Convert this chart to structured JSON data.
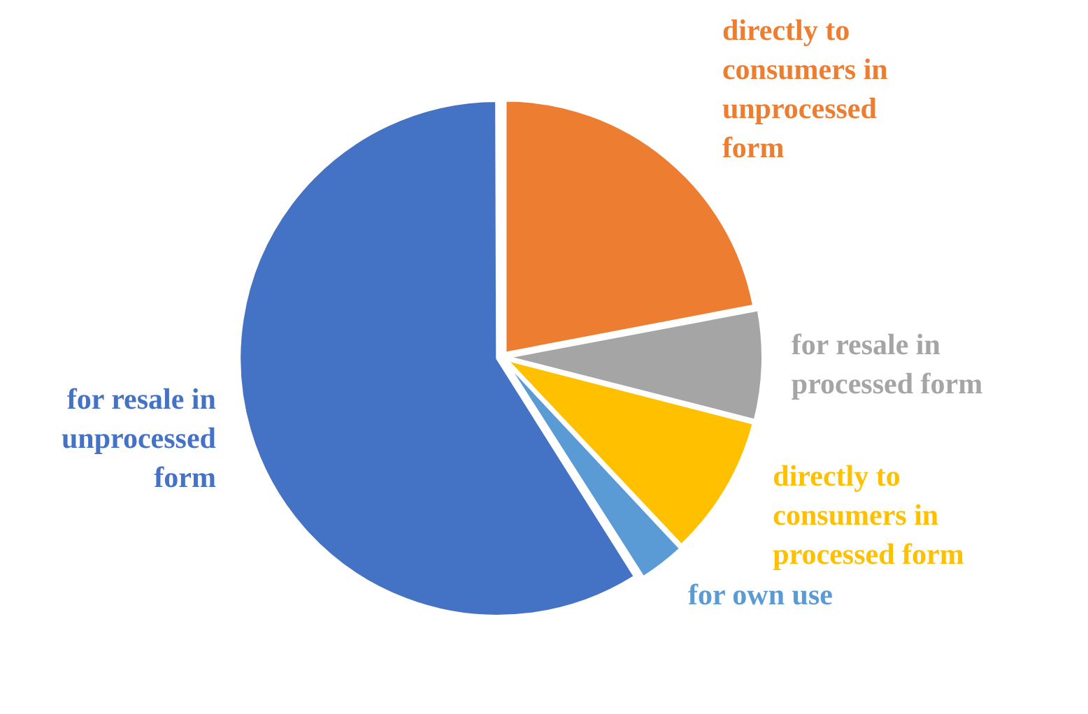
{
  "chart_data": {
    "type": "pie",
    "categories": [
      "directly to consumers in unprocessed form",
      "for resale in processed form",
      "directly to consumers in processed form",
      "for own use",
      "for resale in unprocessed form"
    ],
    "values": [
      22,
      7,
      9,
      3,
      59
    ],
    "colors": [
      "#ed7d31",
      "#a5a5a5",
      "#ffc000",
      "#5b9bd5",
      "#4472c4"
    ],
    "legend": false
  }
}
